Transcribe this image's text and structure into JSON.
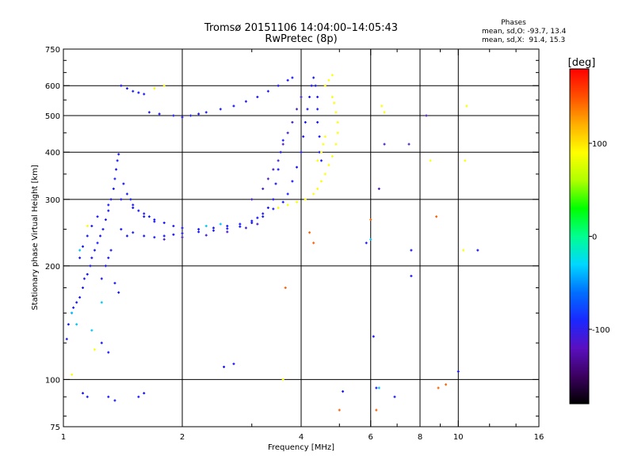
{
  "chart_data": {
    "type": "scatter",
    "title_line1": "Tromsø 20151106 14:04:00–14:05:43",
    "title_line2": "RwPretec (8p)",
    "stats_title": "Phases",
    "stats_line1": "mean, sd,O: -93.7, 13.4",
    "stats_line2": "mean, sd,X:  91.4, 15.3",
    "xlabel": "Frequency [MHz]",
    "ylabel": "Stationary phase Virtual Height [km]",
    "x_scale": "log",
    "y_scale": "log",
    "xlim": [
      1,
      16
    ],
    "ylim": [
      75,
      750
    ],
    "x_ticks": [
      1,
      2,
      4,
      6,
      8,
      10,
      16
    ],
    "x_tick_labels": [
      "1",
      "2",
      "4",
      "6",
      "8",
      "10",
      "16"
    ],
    "x_minor_ticks": [
      3,
      5,
      7,
      9,
      12,
      14
    ],
    "y_ticks": [
      75,
      100,
      200,
      300,
      400,
      500,
      600,
      750
    ],
    "y_tick_labels": [
      "75",
      "100",
      "200",
      "300",
      "400",
      "500",
      "600",
      "750"
    ],
    "y_minor_ticks": [
      80,
      90,
      125,
      150,
      175,
      250,
      350,
      450,
      550,
      650,
      700
    ],
    "grid": true,
    "grid_x": [
      2,
      4,
      6,
      8,
      10
    ],
    "grid_y": [
      100,
      200,
      300,
      400,
      500,
      600
    ],
    "colorbar": {
      "label": "[deg]",
      "range": [
        -180,
        180
      ],
      "ticks": [
        100,
        0,
        -100
      ],
      "tick_labels": [
        "100",
        "0",
        "-100"
      ],
      "colors": [
        "#000000",
        "#3c0060",
        "#5a10c0",
        "#1a28ff",
        "#0070ff",
        "#00d8ff",
        "#00ff90",
        "#00ff00",
        "#b0ff00",
        "#ffff00",
        "#ffb000",
        "#ff5000",
        "#ff0000"
      ]
    },
    "series": [
      {
        "color": "#1818ff",
        "points": [
          [
            1.02,
            128
          ],
          [
            1.03,
            140
          ],
          [
            1.05,
            150
          ],
          [
            1.06,
            155
          ],
          [
            1.08,
            160
          ],
          [
            1.1,
            165
          ],
          [
            1.12,
            175
          ],
          [
            1.13,
            185
          ],
          [
            1.15,
            190
          ],
          [
            1.17,
            200
          ],
          [
            1.18,
            210
          ],
          [
            1.2,
            220
          ],
          [
            1.22,
            230
          ],
          [
            1.24,
            240
          ],
          [
            1.26,
            250
          ],
          [
            1.28,
            265
          ],
          [
            1.3,
            280
          ],
          [
            1.32,
            300
          ],
          [
            1.34,
            320
          ],
          [
            1.35,
            340
          ],
          [
            1.36,
            360
          ],
          [
            1.37,
            380
          ],
          [
            1.38,
            395
          ],
          [
            1.25,
            185
          ],
          [
            1.28,
            200
          ],
          [
            1.3,
            210
          ],
          [
            1.32,
            220
          ],
          [
            1.35,
            180
          ],
          [
            1.38,
            170
          ],
          [
            1.4,
            250
          ],
          [
            1.42,
            330
          ],
          [
            1.45,
            310
          ],
          [
            1.48,
            300
          ],
          [
            1.5,
            290
          ],
          [
            1.55,
            280
          ],
          [
            1.6,
            275
          ],
          [
            1.65,
            270
          ],
          [
            1.7,
            265
          ],
          [
            1.8,
            260
          ],
          [
            1.9,
            255
          ],
          [
            2.0,
            252
          ],
          [
            2.2,
            250
          ],
          [
            2.4,
            252
          ],
          [
            2.6,
            255
          ],
          [
            2.8,
            258
          ],
          [
            3.0,
            263
          ],
          [
            3.1,
            268
          ],
          [
            3.2,
            275
          ],
          [
            3.3,
            285
          ],
          [
            3.4,
            300
          ],
          [
            3.45,
            330
          ],
          [
            3.5,
            360
          ],
          [
            3.55,
            400
          ],
          [
            3.6,
            430
          ],
          [
            1.45,
            240
          ],
          [
            1.5,
            245
          ],
          [
            1.6,
            240
          ],
          [
            1.7,
            238
          ],
          [
            1.8,
            240
          ],
          [
            1.9,
            242
          ],
          [
            2.0,
            244
          ],
          [
            2.2,
            246
          ],
          [
            2.4,
            248
          ],
          [
            2.6,
            251
          ],
          [
            2.8,
            254
          ],
          [
            3.0,
            260
          ],
          [
            3.2,
            270
          ],
          [
            3.4,
            283
          ],
          [
            3.6,
            295
          ],
          [
            3.7,
            310
          ],
          [
            3.8,
            335
          ],
          [
            3.9,
            365
          ],
          [
            4.0,
            400
          ],
          [
            4.05,
            440
          ],
          [
            4.1,
            480
          ],
          [
            4.15,
            520
          ],
          [
            4.2,
            560
          ],
          [
            4.25,
            600
          ],
          [
            4.3,
            630
          ],
          [
            4.35,
            600
          ],
          [
            4.4,
            560
          ],
          [
            4.4,
            520
          ],
          [
            4.4,
            480
          ],
          [
            4.45,
            440
          ],
          [
            4.45,
            400
          ],
          [
            4.5,
            380
          ],
          [
            1.65,
            510
          ],
          [
            1.75,
            505
          ],
          [
            1.9,
            500
          ],
          [
            2.0,
            495
          ],
          [
            2.1,
            500
          ],
          [
            2.2,
            505
          ],
          [
            2.3,
            510
          ],
          [
            2.5,
            520
          ],
          [
            2.7,
            530
          ],
          [
            2.9,
            545
          ],
          [
            3.1,
            560
          ],
          [
            3.3,
            580
          ],
          [
            3.5,
            600
          ],
          [
            3.7,
            620
          ],
          [
            3.8,
            630
          ],
          [
            1.4,
            600
          ],
          [
            1.45,
            590
          ],
          [
            1.5,
            580
          ],
          [
            1.55,
            575
          ],
          [
            1.6,
            570
          ],
          [
            1.12,
            92
          ],
          [
            1.15,
            90
          ],
          [
            1.3,
            90
          ],
          [
            1.35,
            88
          ],
          [
            1.55,
            90
          ],
          [
            1.6,
            92
          ],
          [
            2.55,
            108
          ],
          [
            2.7,
            110
          ],
          [
            1.25,
            125
          ],
          [
            1.3,
            118
          ],
          [
            1.1,
            210
          ],
          [
            1.12,
            225
          ],
          [
            1.15,
            240
          ],
          [
            1.18,
            255
          ],
          [
            1.22,
            270
          ],
          [
            1.3,
            290
          ],
          [
            1.4,
            300
          ],
          [
            1.5,
            285
          ],
          [
            1.6,
            270
          ],
          [
            1.7,
            262
          ]
        ]
      },
      {
        "color": "#4a20c8",
        "points": [
          [
            3.0,
            300
          ],
          [
            3.2,
            320
          ],
          [
            3.3,
            340
          ],
          [
            3.4,
            360
          ],
          [
            3.5,
            380
          ],
          [
            3.6,
            420
          ],
          [
            3.7,
            450
          ],
          [
            3.8,
            480
          ],
          [
            3.9,
            520
          ],
          [
            4.0,
            560
          ],
          [
            1.8,
            235
          ],
          [
            2.0,
            238
          ],
          [
            2.3,
            241
          ],
          [
            2.6,
            246
          ],
          [
            2.9,
            252
          ],
          [
            3.1,
            258
          ],
          [
            6.3,
            320
          ],
          [
            6.5,
            420
          ],
          [
            7.5,
            420
          ],
          [
            8.3,
            500
          ]
        ]
      },
      {
        "color": "#ffff00",
        "points": [
          [
            3.5,
            285
          ],
          [
            3.7,
            290
          ],
          [
            3.9,
            295
          ],
          [
            4.1,
            300
          ],
          [
            4.3,
            310
          ],
          [
            4.4,
            320
          ],
          [
            4.5,
            335
          ],
          [
            4.6,
            350
          ],
          [
            4.7,
            370
          ],
          [
            4.8,
            390
          ],
          [
            4.9,
            420
          ],
          [
            4.95,
            450
          ],
          [
            4.95,
            480
          ],
          [
            4.9,
            510
          ],
          [
            4.85,
            540
          ],
          [
            4.8,
            560
          ],
          [
            4.6,
            600
          ],
          [
            4.7,
            620
          ],
          [
            4.8,
            640
          ],
          [
            4.55,
            420
          ],
          [
            4.6,
            440
          ],
          [
            4.5,
            400
          ],
          [
            4.4,
            380
          ],
          [
            1.7,
            590
          ],
          [
            1.8,
            600
          ],
          [
            1.15,
            255
          ],
          [
            1.2,
            120
          ],
          [
            1.05,
            103
          ],
          [
            6.5,
            510
          ],
          [
            6.4,
            530
          ],
          [
            10.5,
            530
          ],
          [
            10.4,
            380
          ],
          [
            8.5,
            380
          ],
          [
            10.3,
            220
          ],
          [
            3.6,
            100
          ]
        ]
      },
      {
        "color": "#ff6000",
        "points": [
          [
            3.65,
            175
          ],
          [
            4.2,
            245
          ],
          [
            4.3,
            230
          ],
          [
            5.0,
            83
          ],
          [
            6.2,
            83
          ],
          [
            6.0,
            265
          ],
          [
            8.8,
            270
          ],
          [
            9.3,
            97
          ],
          [
            8.9,
            95
          ]
        ]
      },
      {
        "color": "#00c8ff",
        "points": [
          [
            1.05,
            150
          ],
          [
            1.08,
            140
          ],
          [
            1.1,
            220
          ],
          [
            1.18,
            135
          ],
          [
            1.25,
            160
          ],
          [
            2.3,
            255
          ],
          [
            2.5,
            258
          ],
          [
            6.3,
            95
          ],
          [
            6.0,
            235
          ]
        ]
      },
      {
        "color": "#1818ff",
        "points": [
          [
            5.85,
            230
          ],
          [
            6.2,
            95
          ],
          [
            6.9,
            90
          ],
          [
            7.6,
            220
          ],
          [
            7.6,
            188
          ],
          [
            10.0,
            105
          ],
          [
            11.2,
            220
          ],
          [
            6.1,
            130
          ],
          [
            5.1,
            93
          ]
        ]
      }
    ]
  }
}
